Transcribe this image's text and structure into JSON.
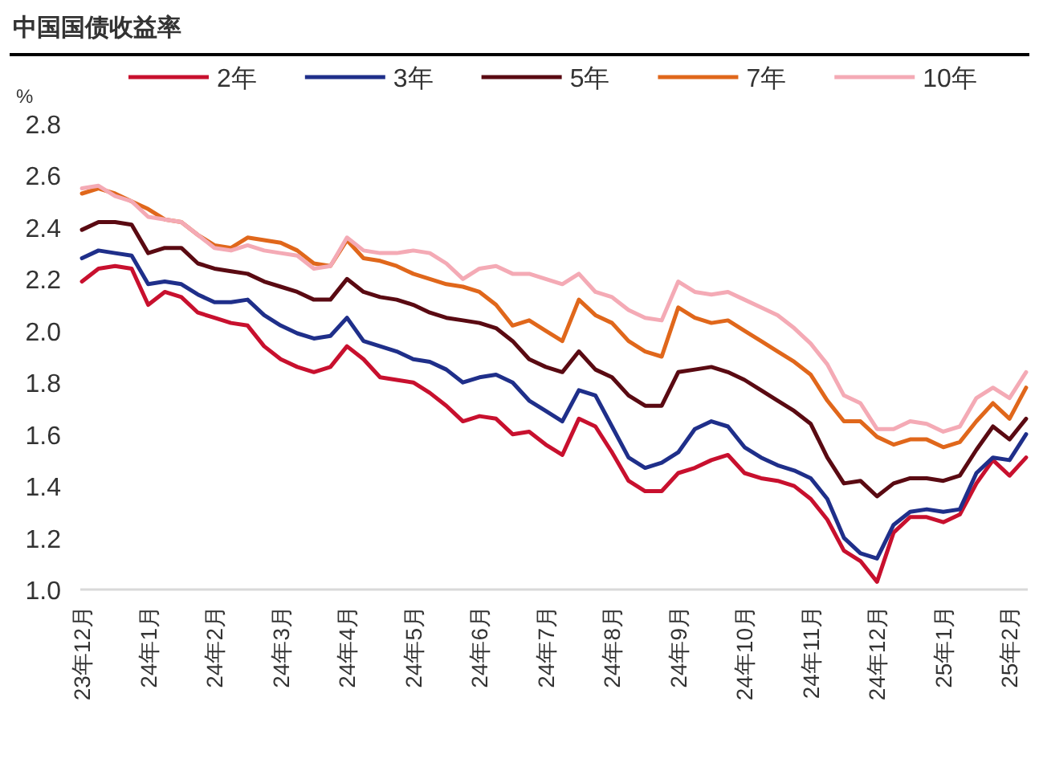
{
  "chart_data": {
    "type": "line",
    "title": "中国国债收益率",
    "ylabel": "%",
    "legend": "top",
    "categories": [
      "23年12月",
      null,
      null,
      null,
      "24年1月",
      null,
      null,
      null,
      "24年2月",
      null,
      null,
      null,
      "24年3月",
      null,
      null,
      null,
      "24年4月",
      null,
      null,
      null,
      "24年5月",
      null,
      null,
      null,
      "24年6月",
      null,
      null,
      null,
      "24年7月",
      null,
      null,
      null,
      "24年8月",
      null,
      null,
      null,
      "24年9月",
      null,
      null,
      null,
      "24年10月",
      null,
      null,
      null,
      "24年11月",
      null,
      null,
      null,
      "24年12月",
      null,
      null,
      null,
      "25年1月",
      null,
      null,
      null,
      "25年2月",
      null
    ],
    "ylim": [
      1.0,
      2.8
    ],
    "yticks": [
      {
        "value": 1.0,
        "label": "1.0"
      },
      {
        "value": 1.2,
        "label": "1.2"
      },
      {
        "value": 1.4,
        "label": "1.4"
      },
      {
        "value": 1.6,
        "label": "1.6"
      },
      {
        "value": 1.8,
        "label": "1.8"
      },
      {
        "value": 2.0,
        "label": "2.0"
      },
      {
        "value": 2.2,
        "label": "2.2"
      },
      {
        "value": 2.4,
        "label": "2.4"
      },
      {
        "value": 2.6,
        "label": "2.6"
      },
      {
        "value": 2.8,
        "label": "2.8"
      }
    ],
    "series": [
      {
        "name": "2年",
        "color": "#c8102e",
        "values": [
          2.19,
          2.24,
          2.25,
          2.24,
          2.1,
          2.15,
          2.13,
          2.07,
          2.05,
          2.03,
          2.02,
          1.94,
          1.89,
          1.86,
          1.84,
          1.86,
          1.94,
          1.89,
          1.82,
          1.81,
          1.8,
          1.76,
          1.71,
          1.65,
          1.67,
          1.66,
          1.6,
          1.61,
          1.56,
          1.52,
          1.66,
          1.63,
          1.53,
          1.42,
          1.38,
          1.38,
          1.45,
          1.47,
          1.5,
          1.52,
          1.45,
          1.43,
          1.42,
          1.4,
          1.35,
          1.27,
          1.15,
          1.11,
          1.03,
          1.22,
          1.28,
          1.28,
          1.26,
          1.29,
          1.41,
          1.5,
          1.44,
          1.51
        ]
      },
      {
        "name": "3年",
        "color": "#1f2f8a",
        "values": [
          2.28,
          2.31,
          2.3,
          2.29,
          2.18,
          2.19,
          2.18,
          2.14,
          2.11,
          2.11,
          2.12,
          2.06,
          2.02,
          1.99,
          1.97,
          1.98,
          2.05,
          1.96,
          1.94,
          1.92,
          1.89,
          1.88,
          1.85,
          1.8,
          1.82,
          1.83,
          1.8,
          1.73,
          1.69,
          1.65,
          1.77,
          1.75,
          1.63,
          1.51,
          1.47,
          1.49,
          1.53,
          1.62,
          1.65,
          1.63,
          1.55,
          1.51,
          1.48,
          1.46,
          1.43,
          1.35,
          1.2,
          1.14,
          1.12,
          1.25,
          1.3,
          1.31,
          1.3,
          1.31,
          1.45,
          1.51,
          1.5,
          1.6
        ]
      },
      {
        "name": "5年",
        "color": "#5a0a12",
        "values": [
          2.39,
          2.42,
          2.42,
          2.41,
          2.3,
          2.32,
          2.32,
          2.26,
          2.24,
          2.23,
          2.22,
          2.19,
          2.17,
          2.15,
          2.12,
          2.12,
          2.2,
          2.15,
          2.13,
          2.12,
          2.1,
          2.07,
          2.05,
          2.04,
          2.03,
          2.01,
          1.96,
          1.89,
          1.86,
          1.84,
          1.92,
          1.85,
          1.82,
          1.75,
          1.71,
          1.71,
          1.84,
          1.85,
          1.86,
          1.84,
          1.81,
          1.77,
          1.73,
          1.69,
          1.64,
          1.51,
          1.41,
          1.42,
          1.36,
          1.41,
          1.43,
          1.43,
          1.42,
          1.44,
          1.54,
          1.63,
          1.58,
          1.66
        ]
      },
      {
        "name": "7年",
        "color": "#e0671b",
        "values": [
          2.53,
          2.55,
          2.53,
          2.5,
          2.47,
          2.43,
          2.42,
          2.37,
          2.33,
          2.32,
          2.36,
          2.35,
          2.34,
          2.31,
          2.26,
          2.25,
          2.35,
          2.28,
          2.27,
          2.25,
          2.22,
          2.2,
          2.18,
          2.17,
          2.15,
          2.1,
          2.02,
          2.04,
          2.0,
          1.96,
          2.12,
          2.06,
          2.03,
          1.96,
          1.92,
          1.9,
          2.09,
          2.05,
          2.03,
          2.04,
          2.0,
          1.96,
          1.92,
          1.88,
          1.83,
          1.73,
          1.65,
          1.65,
          1.59,
          1.56,
          1.58,
          1.58,
          1.55,
          1.57,
          1.65,
          1.72,
          1.66,
          1.78
        ]
      },
      {
        "name": "10年",
        "color": "#f4aab5",
        "values": [
          2.55,
          2.56,
          2.52,
          2.5,
          2.44,
          2.43,
          2.42,
          2.37,
          2.32,
          2.31,
          2.33,
          2.31,
          2.3,
          2.29,
          2.24,
          2.25,
          2.36,
          2.31,
          2.3,
          2.3,
          2.31,
          2.3,
          2.26,
          2.2,
          2.24,
          2.25,
          2.22,
          2.22,
          2.2,
          2.18,
          2.22,
          2.15,
          2.13,
          2.08,
          2.05,
          2.04,
          2.19,
          2.15,
          2.14,
          2.15,
          2.12,
          2.09,
          2.06,
          2.01,
          1.95,
          1.87,
          1.75,
          1.72,
          1.62,
          1.62,
          1.65,
          1.64,
          1.61,
          1.63,
          1.74,
          1.78,
          1.74,
          1.84
        ]
      }
    ]
  }
}
